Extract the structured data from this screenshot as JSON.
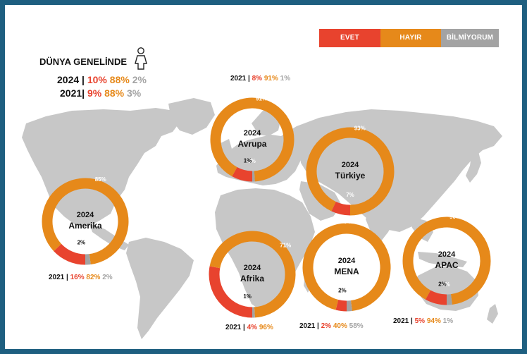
{
  "legend": {
    "yes": "EVET",
    "no": "HAYIR",
    "dontknow": "BİLMİYORUM"
  },
  "colors": {
    "yes": "#e8432e",
    "no": "#e6891a",
    "dontknow": "#a3a3a3",
    "map": "#c7c7c7",
    "frame": "#1e5f80"
  },
  "global": {
    "title": "DÜNYA GENELİNDE",
    "icon": "person-icon",
    "rows": [
      {
        "year": "2024",
        "sep": " |",
        "yes": "10%",
        "no": "88%",
        "dontknow": "2%"
      },
      {
        "year": "2021",
        "sep": "|",
        "yes": "9%",
        "no": "88%",
        "dontknow": "3%"
      }
    ]
  },
  "chart_data": {
    "type": "pie",
    "variant": "donut",
    "series_names": [
      "EVET",
      "HAYIR",
      "BİLMİYORUM"
    ],
    "regions": [
      {
        "id": "avrupa",
        "year": "2024",
        "name": "Avrupa",
        "values": [
          8,
          91,
          1
        ],
        "labels": [
          "8%",
          "91%",
          "1%"
        ],
        "prev": {
          "year": "2021",
          "sep": "|",
          "values": [
            "8%",
            "91%",
            "1%"
          ]
        }
      },
      {
        "id": "turkiye",
        "year": "2024",
        "name": "Türkiye",
        "values": [
          7,
          93,
          0
        ],
        "labels": [
          "7%",
          "93%",
          ""
        ],
        "prev": null
      },
      {
        "id": "amerika",
        "year": "2024",
        "name": "Amerika",
        "values": [
          13,
          85,
          2
        ],
        "labels": [
          "13%",
          "85%",
          "2%"
        ],
        "prev": {
          "year": "2021",
          "sep": "|",
          "values": [
            "16%",
            "82%",
            "2%"
          ]
        }
      },
      {
        "id": "afrika",
        "year": "2024",
        "name": "Afrika",
        "values": [
          28,
          71,
          1
        ],
        "labels": [
          "28%",
          "71%",
          "1%"
        ],
        "prev": {
          "year": "2021",
          "sep": "|",
          "values": [
            "4%",
            "96%",
            ""
          ]
        }
      },
      {
        "id": "mena",
        "year": "2024",
        "name": "MENA",
        "values": [
          4,
          94,
          2
        ],
        "labels": [
          "4%",
          "94%",
          "2%"
        ],
        "prev": {
          "year": "2021",
          "sep": "|",
          "values": [
            "2%",
            "40%",
            "58%"
          ]
        }
      },
      {
        "id": "apac",
        "year": "2024",
        "name": "APAC",
        "values": [
          8,
          90,
          2
        ],
        "labels": [
          "8%",
          "90%",
          "2%"
        ],
        "prev": {
          "year": "2021",
          "sep": "|",
          "values": [
            "5%",
            "94%",
            "1%"
          ]
        }
      }
    ]
  }
}
